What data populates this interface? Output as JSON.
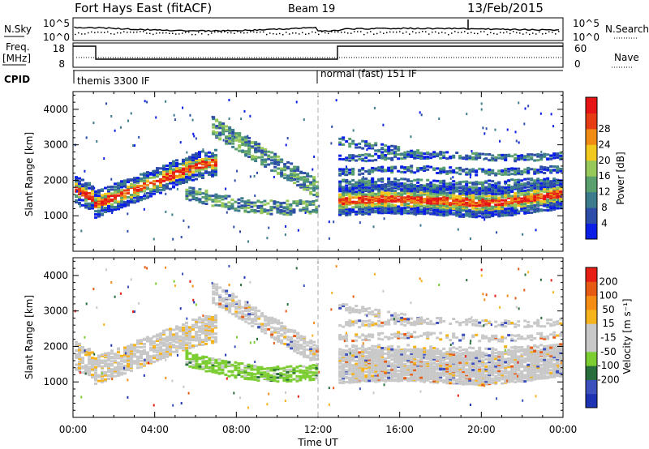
{
  "header": {
    "title": "Fort Hays East (fitACF)",
    "beam": "Beam 19",
    "date": "13/Feb/2015"
  },
  "noise_panel": {
    "left_label": "N.Sky",
    "left_ticks": [
      "10^5",
      "10^0"
    ],
    "right_ticks": [
      "10^5",
      "10^0"
    ],
    "right_label": "N.Search"
  },
  "freq_panel": {
    "left_label_line1": "Freq.",
    "left_label_line2": "[MHz]",
    "left_ticks": [
      "18",
      "8"
    ],
    "right_ticks": [
      "60",
      "0"
    ],
    "right_label": "Nave"
  },
  "cpid": {
    "label": "CPID",
    "modes": [
      "themis 3300 IF",
      "normal (fast) 151 IF"
    ]
  },
  "x_axis": {
    "ticks": [
      "00:00",
      "04:00",
      "08:00",
      "12:00",
      "16:00",
      "20:00",
      "00:00"
    ],
    "label": "Time UT"
  },
  "chart_data": [
    {
      "type": "heatmap",
      "ylabel": "Slant Range [km]",
      "yticks": [
        "1000",
        "2000",
        "3000",
        "4000"
      ],
      "ylim": [
        0,
        4500
      ],
      "xlim_hours": [
        0,
        24
      ],
      "colorbar": {
        "label": "Power [dB]",
        "ticks": [
          "4",
          "8",
          "12",
          "16",
          "20",
          "24",
          "28"
        ],
        "colors": [
          "#0a1ee6",
          "#2d4da8",
          "#3c7c8c",
          "#5aa06e",
          "#96c85a",
          "#f0c81e",
          "#f08c14",
          "#e63c14",
          "#e61414"
        ]
      }
    },
    {
      "type": "heatmap",
      "ylabel": "Slant Range [km]",
      "yticks": [
        "1000",
        "2000",
        "3000",
        "4000"
      ],
      "ylim": [
        0,
        4500
      ],
      "xlim_hours": [
        0,
        24
      ],
      "colorbar": {
        "label": "Velocity [m s⁻¹]",
        "ticks": [
          "200",
          "100",
          "50",
          "15",
          "-15",
          "-50",
          "-100",
          "-200"
        ],
        "colors": [
          "#1e32b4",
          "#3c50be",
          "#286e3c",
          "#7ccd32",
          "#c8c8c8",
          "#c8c8c8",
          "#f5b41e",
          "#f58c14",
          "#e65a14",
          "#e61e14"
        ]
      }
    }
  ]
}
